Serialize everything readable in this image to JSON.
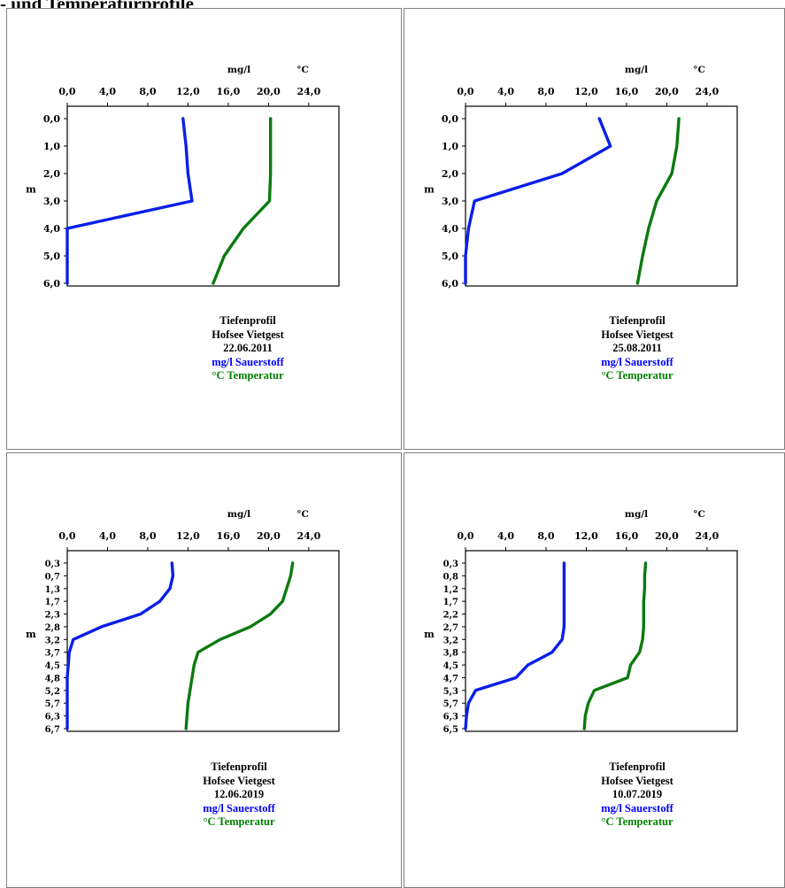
{
  "page_heading": "- und Temperaturprofile",
  "colors": {
    "oxygen": "#0a1fe8",
    "temperature": "#0b7a10",
    "frame": "#000000",
    "panel_border": "#808080"
  },
  "chart_data": [
    {
      "type": "line",
      "unit_left": "mg/l",
      "unit_right": "°C",
      "xlabel": "",
      "ylabel": "m",
      "xlim": [
        0,
        27
      ],
      "x_ticks": [
        "0,0",
        "4,0",
        "8,0",
        "12,0",
        "16,0",
        "20,0",
        "24,0"
      ],
      "x_tick_values": [
        0,
        4,
        8,
        12,
        16,
        20,
        24
      ],
      "y_ticks": [
        "0,0",
        "1,0",
        "2,0",
        "3,0",
        "4,0",
        "5,0",
        "6,0"
      ],
      "y": [
        0.0,
        1.0,
        2.0,
        3.0,
        4.0,
        5.0,
        6.0
      ],
      "series": [
        {
          "name": "mg/l Sauerstoff",
          "key": "oxygen",
          "values": [
            11.5,
            11.8,
            12.0,
            12.4,
            0.0,
            0.0,
            0.0
          ]
        },
        {
          "name": "°C Temperatur",
          "key": "temperature",
          "values": [
            20.2,
            20.2,
            20.2,
            20.1,
            17.5,
            15.6,
            14.5
          ]
        }
      ],
      "caption": [
        "Tiefenprofil",
        "Hofsee Vietgest",
        "22.06.2011"
      ],
      "legend": "bottom"
    },
    {
      "type": "line",
      "unit_left": "mg/l",
      "unit_right": "°C",
      "xlabel": "",
      "ylabel": "m",
      "xlim": [
        0,
        27
      ],
      "x_ticks": [
        "0,0",
        "4,0",
        "8,0",
        "12,0",
        "16,0",
        "20,0",
        "24,0"
      ],
      "x_tick_values": [
        0,
        4,
        8,
        12,
        16,
        20,
        24
      ],
      "y_ticks": [
        "0,0",
        "1,0",
        "2,0",
        "3,0",
        "4,0",
        "5,0",
        "6,0"
      ],
      "y": [
        0.0,
        1.0,
        2.0,
        3.0,
        4.0,
        5.0,
        6.0
      ],
      "series": [
        {
          "name": "mg/l Sauerstoff",
          "key": "oxygen",
          "values": [
            13.3,
            14.4,
            9.6,
            0.9,
            0.3,
            0.0,
            0.0
          ]
        },
        {
          "name": "°C Temperatur",
          "key": "temperature",
          "values": [
            21.2,
            21.0,
            20.5,
            19.0,
            18.2,
            17.6,
            17.1
          ]
        }
      ],
      "caption": [
        "Tiefenprofil",
        "Hofsee Vietgest",
        "25.08.2011"
      ],
      "legend": "bottom"
    },
    {
      "type": "line",
      "unit_left": "mg/l",
      "unit_right": "°C",
      "xlabel": "",
      "ylabel": "m",
      "xlim": [
        0,
        27
      ],
      "x_ticks": [
        "0,0",
        "4,0",
        "8,0",
        "12,0",
        "16,0",
        "20,0",
        "24,0"
      ],
      "x_tick_values": [
        0,
        4,
        8,
        12,
        16,
        20,
        24
      ],
      "y_ticks": [
        "0,3",
        "0,7",
        "1,3",
        "1,7",
        "2,3",
        "2,8",
        "3,2",
        "3,7",
        "4,5",
        "4,8",
        "5,2",
        "5,7",
        "6,3",
        "6,7"
      ],
      "y": [
        0.3,
        0.7,
        1.3,
        1.7,
        2.3,
        2.8,
        3.2,
        3.7,
        4.5,
        4.8,
        5.2,
        5.7,
        6.3,
        6.7
      ],
      "series": [
        {
          "name": "mg/l Sauerstoff",
          "key": "oxygen",
          "values": [
            10.4,
            10.5,
            10.2,
            9.2,
            7.3,
            3.4,
            0.6,
            0.2,
            0.1,
            0.0,
            0.0,
            0.0,
            0.0,
            0.0
          ]
        },
        {
          "name": "°C Temperatur",
          "key": "temperature",
          "values": [
            22.4,
            22.2,
            21.8,
            21.4,
            20.2,
            18.2,
            15.2,
            13.0,
            12.6,
            12.4,
            12.2,
            12.0,
            11.9,
            11.8
          ]
        }
      ],
      "caption": [
        "Tiefenprofil",
        "Hofsee Vietgest",
        "12.06.2019"
      ],
      "legend": "bottom"
    },
    {
      "type": "line",
      "unit_left": "mg/l",
      "unit_right": "°C",
      "xlabel": "",
      "ylabel": "m",
      "xlim": [
        0,
        27
      ],
      "x_ticks": [
        "0,0",
        "4,0",
        "8,0",
        "12,0",
        "16,0",
        "20,0",
        "24,0"
      ],
      "x_tick_values": [
        0,
        4,
        8,
        12,
        16,
        20,
        24
      ],
      "y_ticks": [
        "0,3",
        "0,8",
        "1,2",
        "1,7",
        "2,2",
        "2,7",
        "3,2",
        "3,8",
        "4,5",
        "4,7",
        "5,3",
        "5,7",
        "6,3",
        "6,5"
      ],
      "y": [
        0.3,
        0.8,
        1.2,
        1.7,
        2.2,
        2.7,
        3.2,
        3.8,
        4.5,
        4.7,
        5.3,
        5.7,
        6.3,
        6.5
      ],
      "series": [
        {
          "name": "mg/l Sauerstoff",
          "key": "oxygen",
          "values": [
            9.8,
            9.8,
            9.8,
            9.8,
            9.8,
            9.8,
            9.6,
            8.6,
            6.2,
            5.0,
            1.0,
            0.3,
            0.1,
            0.0
          ]
        },
        {
          "name": "°C Temperatur",
          "key": "temperature",
          "values": [
            17.9,
            17.8,
            17.8,
            17.7,
            17.7,
            17.7,
            17.6,
            17.3,
            16.4,
            16.1,
            12.8,
            12.2,
            11.9,
            11.8
          ]
        }
      ],
      "caption": [
        "Tiefenprofil",
        "Hofsee Vietgest",
        "10.07.2019"
      ],
      "legend": "bottom"
    }
  ]
}
